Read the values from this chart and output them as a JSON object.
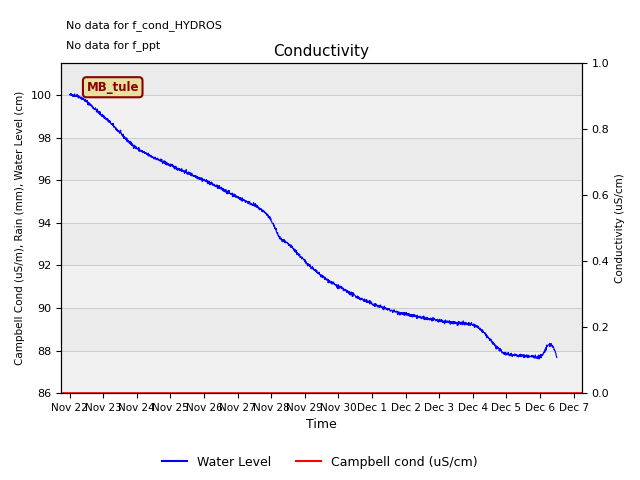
{
  "title": "Conductivity",
  "xlabel": "Time",
  "ylabel_left": "Campbell Cond (uS/m), Rain (mm), Water Level (cm)",
  "ylabel_right": "Conductivity (uS/cm)",
  "ylim_left": [
    86,
    101.5
  ],
  "ylim_right": [
    0.0,
    1.0
  ],
  "yticks_left": [
    86,
    88,
    90,
    92,
    94,
    96,
    98,
    100
  ],
  "yticks_right": [
    0.0,
    0.2,
    0.4,
    0.6,
    0.8,
    1.0
  ],
  "bg_color": "#ebebeb",
  "stripe_color": "#e0e0e0",
  "text_annotations": [
    "No data for f_cond_HYDROS",
    "No data for f_ppt"
  ],
  "legend_entries": [
    "Water Level",
    "Campbell cond (uS/cm)"
  ],
  "legend_colors": [
    "blue",
    "red"
  ],
  "label_text": "MB_tule",
  "label_bg": "#e8e0a0",
  "label_border": "#8b0000",
  "label_text_color": "#8b0000",
  "waypoints_x": [
    0,
    0.08,
    1.0,
    2.0,
    3.0,
    4.0,
    5.0,
    5.8,
    6.0,
    6.3,
    6.5,
    7.0,
    7.5,
    8.0,
    9.0,
    10.0,
    11.0,
    11.5,
    12.0,
    13.0,
    13.2,
    13.5,
    14.0,
    14.3,
    14.5
  ],
  "waypoints_y": [
    100.0,
    100.0,
    99.0,
    97.5,
    96.7,
    96.0,
    95.2,
    94.5,
    94.1,
    93.2,
    93.0,
    92.2,
    91.5,
    91.0,
    90.2,
    89.7,
    89.4,
    89.3,
    89.2,
    87.85,
    87.8,
    87.75,
    87.7,
    88.3,
    87.7
  ]
}
